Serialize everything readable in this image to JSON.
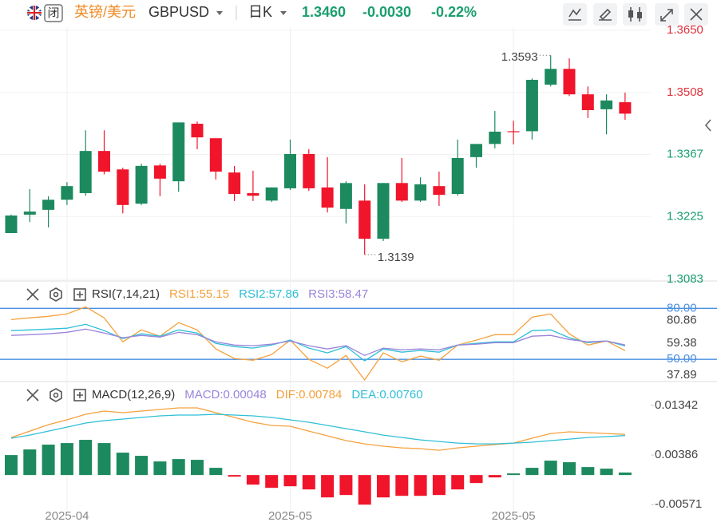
{
  "header": {
    "pair": "英镑/美元",
    "symbol": "GBPUSD",
    "period": "日K",
    "price": "1.3460",
    "change": "-0.0030",
    "change_pct": "-0.22%",
    "closed_badge": "闭"
  },
  "chart_data": [
    {
      "type": "candlestick",
      "categories": [
        null,
        null,
        null,
        "2025-04",
        null,
        null,
        null,
        null,
        null,
        null,
        null,
        null,
        null,
        null,
        null,
        "2025-05",
        null,
        null,
        null,
        null,
        null,
        null,
        null,
        null,
        null,
        null,
        null,
        "2025-05",
        null,
        null,
        null,
        null,
        null,
        null
      ],
      "open": [
        1.3188,
        1.323,
        1.3241,
        1.3264,
        1.3279,
        1.3375,
        1.3333,
        1.3255,
        1.3342,
        1.3306,
        1.3437,
        1.3404,
        1.3326,
        1.3279,
        1.3262,
        1.329,
        1.3368,
        1.3292,
        1.3243,
        1.3262,
        1.3175,
        1.3302,
        1.3262,
        1.3295,
        1.3277,
        1.3361,
        1.3391,
        1.342,
        1.342,
        1.3526,
        1.3562,
        1.3504,
        1.347,
        1.3486
      ],
      "high": [
        1.323,
        1.3288,
        1.3272,
        1.3304,
        1.3422,
        1.3422,
        1.3337,
        1.3346,
        1.3346,
        1.344,
        1.3442,
        1.3404,
        1.3341,
        1.333,
        1.3292,
        1.3401,
        1.3379,
        1.3361,
        1.3306,
        1.3299,
        1.3302,
        1.3359,
        1.3315,
        1.3328,
        1.3401,
        1.3391,
        1.3466,
        1.3444,
        1.354,
        1.3593,
        1.3586,
        1.3522,
        1.3504,
        1.3508
      ],
      "low": [
        1.3188,
        1.3213,
        1.3201,
        1.3252,
        1.3273,
        1.3322,
        1.3233,
        1.3252,
        1.3272,
        1.3282,
        1.3379,
        1.331,
        1.3261,
        1.3261,
        1.3259,
        1.3286,
        1.3284,
        1.3235,
        1.321,
        1.3139,
        1.317,
        1.3259,
        1.3259,
        1.325,
        1.3273,
        1.3337,
        1.3381,
        1.339,
        1.3401,
        1.3522,
        1.35,
        1.345,
        1.3413,
        1.3446
      ],
      "close": [
        1.3228,
        1.3237,
        1.3264,
        1.3295,
        1.3375,
        1.3328,
        1.3252,
        1.3341,
        1.3312,
        1.344,
        1.3406,
        1.3328,
        1.3277,
        1.3273,
        1.3292,
        1.3368,
        1.329,
        1.3246,
        1.3302,
        1.3175,
        1.3302,
        1.3262,
        1.3299,
        1.3275,
        1.3359,
        1.3391,
        1.3419,
        1.3419,
        1.3537,
        1.3562,
        1.3504,
        1.3468,
        1.349,
        1.346
      ],
      "up_color": "#1c8a5e",
      "down_color": "#f0152b",
      "ylim": [
        1.3079,
        1.3657
      ],
      "yticks": [
        {
          "value": 1.365,
          "label": "1.3650"
        },
        1.3508,
        1.3367,
        1.3225,
        1.3083
      ],
      "high_label": "1.3593",
      "low_label": "1.3139",
      "grid": true
    },
    {
      "type": "line",
      "title": "RSI(7,14,21)",
      "series": [
        {
          "name": "RSI1:55.15",
          "color": "#f5a13c",
          "values": [
            73.4,
            74.4,
            75.3,
            76.7,
            80.86,
            74.4,
            60.3,
            67.3,
            63.6,
            71.6,
            67.3,
            56.1,
            50.5,
            49.5,
            52.8,
            61.3,
            50.0,
            44.8,
            52.3,
            37.89,
            53.8,
            48.6,
            51.9,
            49.5,
            58.4,
            61.3,
            64.5,
            64.5,
            74.8,
            76.7,
            65.0,
            58.4,
            60.8,
            55.15
          ]
        },
        {
          "name": "RSI2:57.86",
          "color": "#2fbfd6",
          "values": [
            66.9,
            67.3,
            67.8,
            68.3,
            70.6,
            66.9,
            62.2,
            65.0,
            63.6,
            67.3,
            65.5,
            59.4,
            57.5,
            56.6,
            58.4,
            61.3,
            56.6,
            53.8,
            57.5,
            49.1,
            56.1,
            54.2,
            55.2,
            54.2,
            58.4,
            59.4,
            60.3,
            60.3,
            66.9,
            67.3,
            62.7,
            59.8,
            60.8,
            57.86
          ]
        },
        {
          "name": "RSI3:58.47",
          "color": "#9b84dc",
          "values": [
            64.1,
            64.5,
            65.0,
            65.9,
            67.8,
            65.5,
            62.7,
            64.1,
            63.1,
            65.9,
            64.5,
            60.3,
            58.4,
            58.0,
            58.9,
            60.8,
            58.0,
            56.1,
            58.0,
            52.3,
            56.6,
            55.6,
            56.1,
            55.6,
            58.4,
            58.9,
            59.8,
            59.8,
            63.6,
            64.1,
            61.7,
            60.3,
            60.8,
            58.47
          ]
        }
      ],
      "ylim": [
        36,
        90
      ],
      "yticks": [
        {
          "value": 80,
          "label": "80.00"
        },
        80.86,
        59.38,
        {
          "value": 50,
          "label": "50.00"
        },
        37.89
      ],
      "hlines": [
        80,
        50
      ],
      "hline_color": "#4a8fe0"
    },
    {
      "type": "macd",
      "title": "MACD(12,26,9)",
      "series": [
        {
          "name": "MACD:0.00048",
          "mark": "bar",
          "color": "#9b84dc",
          "up_color": "#1c8a5e",
          "down_color": "#f0152b",
          "values": [
            0.00385,
            0.00493,
            0.00586,
            0.00616,
            0.00678,
            0.00616,
            0.00431,
            0.0037,
            0.00262,
            0.00308,
            0.00293,
            0.00139,
            -0.00031,
            -0.00185,
            -0.00247,
            -0.00216,
            -0.00277,
            -0.00431,
            -0.00385,
            -0.00571,
            -0.00431,
            -0.00401,
            -0.00401,
            -0.00385,
            -0.00277,
            -0.00154,
            -0.00046,
            0.00031,
            0.00139,
            0.00277,
            0.00247,
            0.00154,
            0.00123,
            0.00048
          ]
        },
        {
          "name": "DIF:0.00784",
          "mark": "line",
          "color": "#f5a13c",
          "values": [
            0.00724,
            0.00847,
            0.00971,
            0.01063,
            0.01171,
            0.01233,
            0.01202,
            0.01233,
            0.01263,
            0.01294,
            0.01294,
            0.01202,
            0.01109,
            0.01017,
            0.00955,
            0.0094,
            0.00847,
            0.00755,
            0.00663,
            0.00601,
            0.00555,
            0.00524,
            0.00508,
            0.00478,
            0.00524,
            0.00555,
            0.00586,
            0.00616,
            0.00709,
            0.00801,
            0.00832,
            0.00817,
            0.00801,
            0.00784
          ]
        },
        {
          "name": "DEA:0.00760",
          "mark": "line",
          "color": "#2fbfd6",
          "values": [
            0.00709,
            0.0077,
            0.00847,
            0.00924,
            0.01002,
            0.01048,
            0.01079,
            0.01109,
            0.0114,
            0.01156,
            0.01156,
            0.01171,
            0.01156,
            0.0114,
            0.01109,
            0.01063,
            0.01017,
            0.00955,
            0.00894,
            0.00832,
            0.0077,
            0.00724,
            0.00678,
            0.00647,
            0.00616,
            0.00601,
            0.00601,
            0.00616,
            0.00632,
            0.00663,
            0.00693,
            0.00724,
            0.0074,
            0.0076
          ]
        }
      ],
      "ylim": [
        -0.0069,
        0.0174
      ],
      "yticks": [
        0.01342,
        0.00386,
        -0.00571
      ]
    }
  ]
}
